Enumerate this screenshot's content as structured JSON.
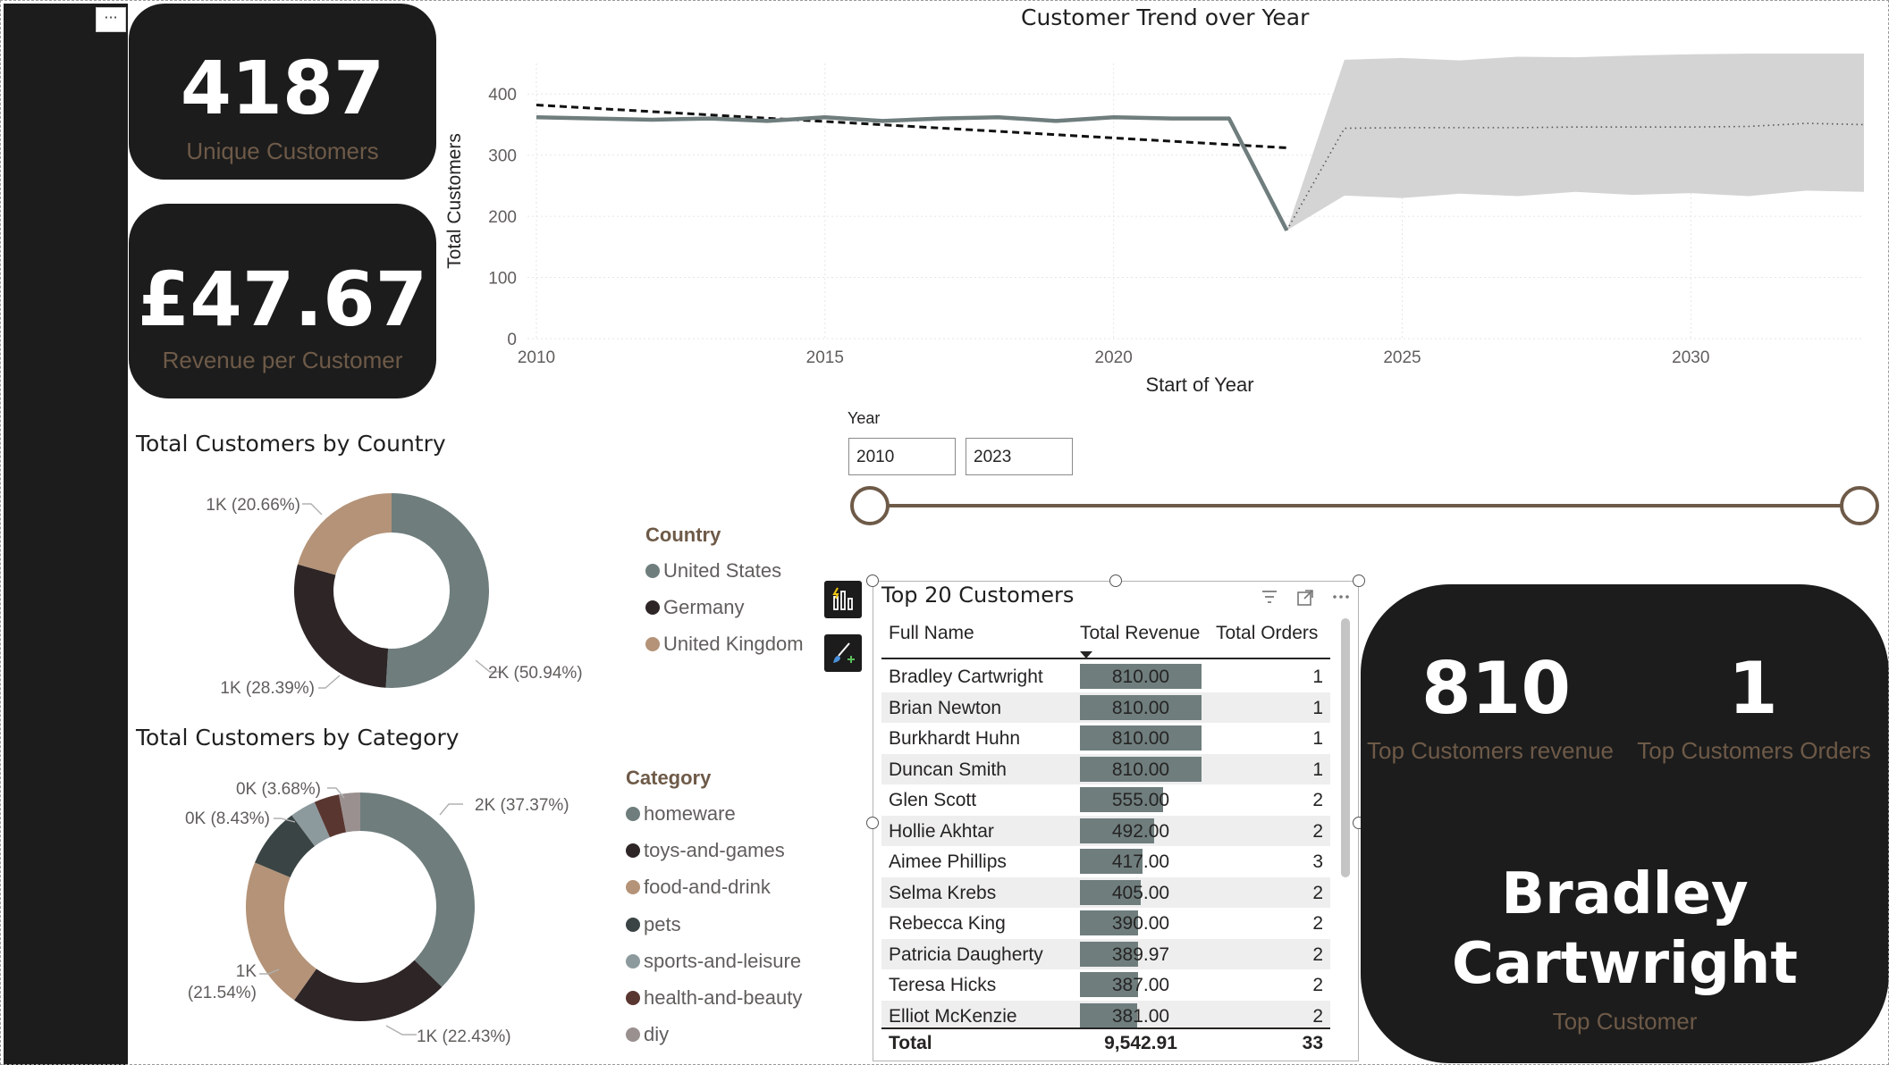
{
  "sidebar": {
    "more_label": "···"
  },
  "kpis": {
    "unique_customers": {
      "value": "4187",
      "label": "Unique Customers"
    },
    "revenue_per_customer": {
      "value": "£47.67",
      "label": "Revenue per Customer"
    }
  },
  "trend_chart": {
    "title": "Customer Trend over Year",
    "xlabel": "Start of Year",
    "ylabel": "Total Customers",
    "chart_data": {
      "type": "line",
      "x": [
        2010,
        2011,
        2012,
        2013,
        2014,
        2015,
        2016,
        2017,
        2018,
        2019,
        2020,
        2021,
        2022,
        2023
      ],
      "values": [
        362,
        360,
        358,
        360,
        356,
        362,
        356,
        360,
        362,
        356,
        362,
        360,
        360,
        177
      ],
      "trend_line": {
        "x": [
          2010,
          2023
        ],
        "values": [
          382,
          312
        ]
      },
      "forecast": {
        "x": [
          2023,
          2024,
          2025,
          2026,
          2027,
          2028,
          2029,
          2030,
          2031,
          2032,
          2033
        ],
        "values": [
          177,
          344,
          345,
          345,
          345,
          346,
          346,
          346,
          347,
          352,
          350
        ],
        "upper": [
          177,
          456,
          459,
          455,
          461,
          460,
          463,
          465,
          466,
          466,
          466
        ],
        "lower": [
          177,
          234,
          230,
          237,
          233,
          240,
          235,
          238,
          233,
          242,
          240
        ]
      },
      "xlim": [
        2010,
        2033
      ],
      "ylim": [
        0,
        450
      ],
      "xticks": [
        "2010",
        "2015",
        "2020",
        "2025",
        "2030"
      ],
      "yticks": [
        "0",
        "100",
        "200",
        "300",
        "400"
      ],
      "colors": {
        "actual": "#6f7d7d",
        "trend": "#111111",
        "forecast_band": "#d4d4d4",
        "forecast_line": "#555555"
      }
    }
  },
  "country_chart": {
    "title": "Total Customers by Country",
    "legend_title": "Country",
    "chart_data": {
      "type": "pie",
      "categories": [
        "United States",
        "Germany",
        "United Kingdom"
      ],
      "values": [
        50.94,
        28.39,
        20.66
      ],
      "data_labels": [
        "2K (50.94%)",
        "1K (28.39%)",
        "1K (20.66%)"
      ],
      "colors": [
        "#6f7d7d",
        "#2e2526",
        "#b49378"
      ]
    }
  },
  "category_chart": {
    "title": "Total Customers by Category",
    "legend_title": "Category",
    "chart_data": {
      "type": "pie",
      "categories": [
        "homeware",
        "toys-and-games",
        "food-and-drink",
        "pets",
        "sports-and-leisure",
        "health-and-beauty",
        "diy"
      ],
      "values": [
        37.37,
        22.43,
        21.54,
        8.43,
        3.68,
        3.55,
        3.0
      ],
      "data_labels": [
        "2K (37.37%)",
        "1K (22.43%)",
        "1K (21.54%)",
        "0K (8.43%)",
        "0K (3.68%)",
        "",
        ""
      ],
      "colors": [
        "#6f7d7d",
        "#2e2526",
        "#b49378",
        "#3a4444",
        "#8c9a9e",
        "#5a3630",
        "#9a9090"
      ]
    }
  },
  "year_slicer": {
    "title": "Year",
    "from": "2010",
    "to": "2023"
  },
  "top_table": {
    "title": "Top 20 Customers",
    "columns": [
      "Full Name",
      "Total Revenue",
      "Total Orders"
    ],
    "rows": [
      {
        "name": "Bradley Cartwright",
        "revenue": "810.00",
        "orders": "1",
        "rev_value": 810
      },
      {
        "name": "Brian Newton",
        "revenue": "810.00",
        "orders": "1",
        "rev_value": 810
      },
      {
        "name": "Burkhardt Huhn",
        "revenue": "810.00",
        "orders": "1",
        "rev_value": 810
      },
      {
        "name": "Duncan Smith",
        "revenue": "810.00",
        "orders": "1",
        "rev_value": 810
      },
      {
        "name": "Glen Scott",
        "revenue": "555.00",
        "orders": "2",
        "rev_value": 555
      },
      {
        "name": "Hollie Akhtar",
        "revenue": "492.00",
        "orders": "2",
        "rev_value": 492
      },
      {
        "name": "Aimee Phillips",
        "revenue": "417.00",
        "orders": "3",
        "rev_value": 417
      },
      {
        "name": "Selma Krebs",
        "revenue": "405.00",
        "orders": "2",
        "rev_value": 405
      },
      {
        "name": "Rebecca King",
        "revenue": "390.00",
        "orders": "2",
        "rev_value": 390
      },
      {
        "name": "Patricia Daugherty",
        "revenue": "389.97",
        "orders": "2",
        "rev_value": 389.97
      },
      {
        "name": "Teresa Hicks",
        "revenue": "387.00",
        "orders": "2",
        "rev_value": 387
      },
      {
        "name": "Elliot McKenzie",
        "revenue": "381.00",
        "orders": "2",
        "rev_value": 381
      }
    ],
    "total": {
      "label": "Total",
      "revenue": "9,542.91",
      "orders": "33"
    }
  },
  "top_customer_card": {
    "revenue_value": "810",
    "revenue_label": "Top Customers revenue",
    "orders_value": "1",
    "orders_label": "Top Customers Orders",
    "name_line1": "Bradley",
    "name_line2": "Cartwright",
    "name_label": "Top Customer"
  }
}
